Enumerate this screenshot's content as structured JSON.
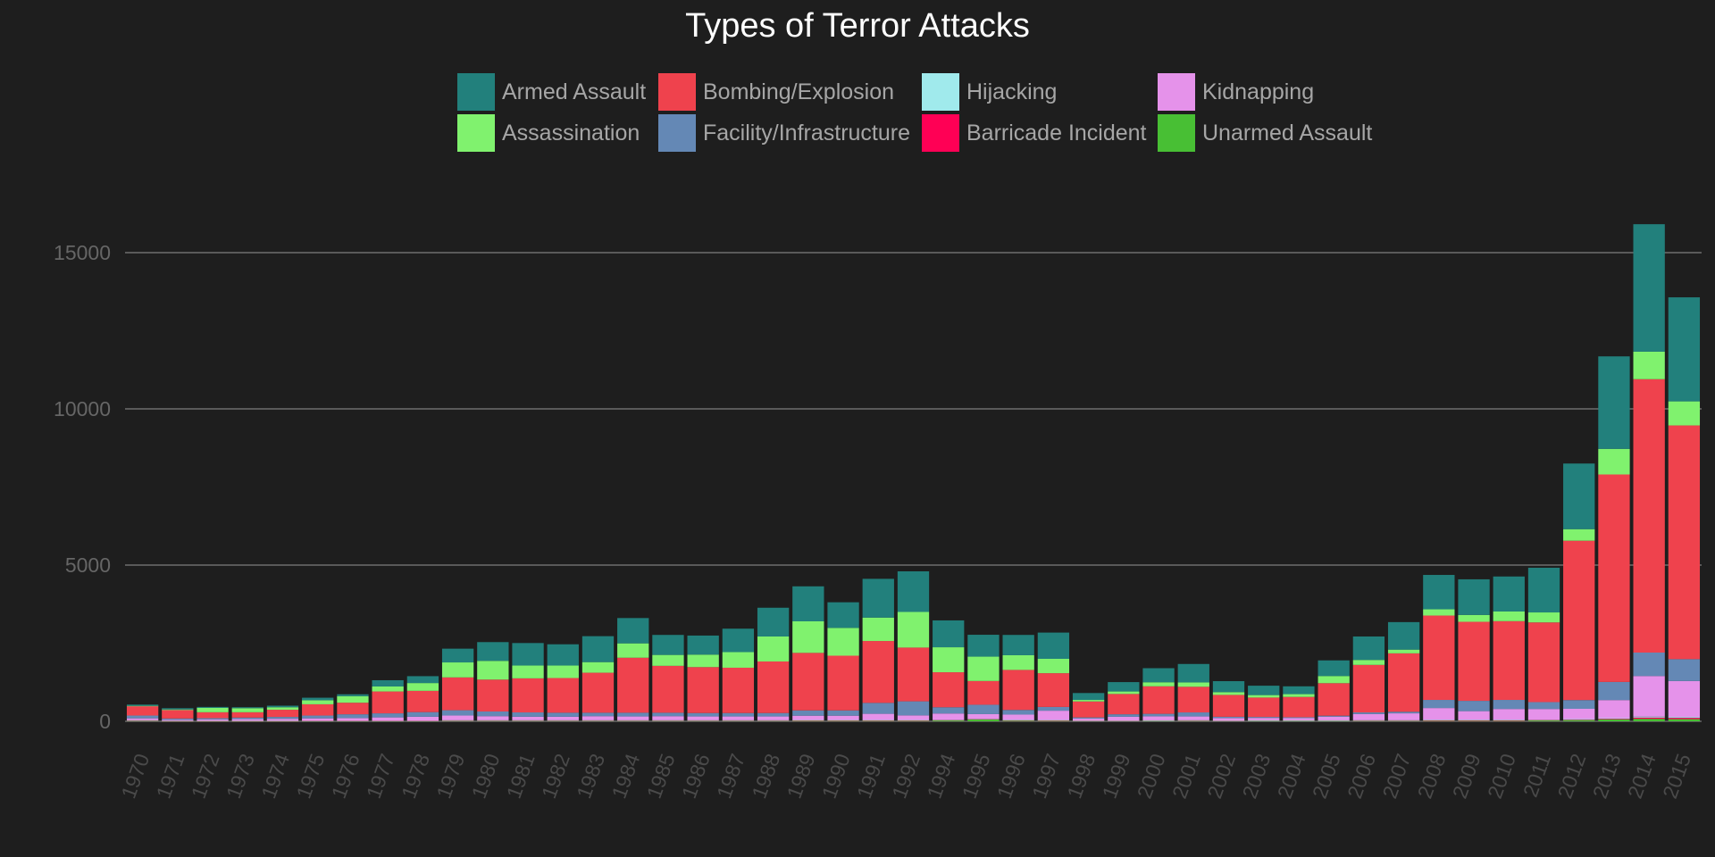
{
  "chart_data": {
    "type": "bar",
    "stacked": true,
    "title": "Types of Terror Attacks",
    "xlabel": "",
    "ylabel": "",
    "ylim": [
      0,
      16000
    ],
    "yticks": [
      0,
      5000,
      10000,
      15000
    ],
    "grid": "horizontal",
    "legend_position": "top-center",
    "categories": [
      "1970",
      "1971",
      "1972",
      "1973",
      "1974",
      "1975",
      "1976",
      "1977",
      "1978",
      "1979",
      "1980",
      "1981",
      "1982",
      "1983",
      "1984",
      "1985",
      "1986",
      "1987",
      "1988",
      "1989",
      "1990",
      "1991",
      "1992",
      "1994",
      "1995",
      "1996",
      "1997",
      "1998",
      "1999",
      "2000",
      "2001",
      "2002",
      "2003",
      "2004",
      "2005",
      "2006",
      "2007",
      "2008",
      "2009",
      "2010",
      "2011",
      "2012",
      "2013",
      "2014",
      "2015"
    ],
    "legend_order": [
      "Armed Assault",
      "Bombing/Explosion",
      "Hijacking",
      "Kidnapping",
      "Assassination",
      "Facility/Infrastructure",
      "Barricade Incident",
      "Unarmed Assault"
    ],
    "series": [
      {
        "name": "Unarmed Assault",
        "color": "#48bf34",
        "values": [
          15,
          5,
          5,
          5,
          5,
          10,
          10,
          10,
          10,
          15,
          15,
          15,
          15,
          15,
          15,
          15,
          15,
          15,
          15,
          20,
          20,
          20,
          20,
          30,
          60,
          25,
          20,
          15,
          15,
          20,
          20,
          15,
          20,
          20,
          20,
          20,
          20,
          20,
          20,
          20,
          30,
          40,
          60,
          80,
          70
        ]
      },
      {
        "name": "Barricade Incident",
        "color": "#ff0055",
        "values": [
          10,
          5,
          5,
          5,
          5,
          5,
          5,
          5,
          5,
          10,
          10,
          10,
          10,
          10,
          10,
          10,
          10,
          10,
          10,
          10,
          10,
          10,
          10,
          10,
          10,
          10,
          10,
          5,
          5,
          5,
          5,
          5,
          5,
          5,
          5,
          5,
          5,
          10,
          10,
          10,
          10,
          10,
          20,
          40,
          40
        ]
      },
      {
        "name": "Hijacking",
        "color": "#a0eaec",
        "values": [
          10,
          10,
          10,
          10,
          10,
          10,
          10,
          10,
          10,
          10,
          10,
          10,
          10,
          10,
          10,
          10,
          10,
          10,
          10,
          10,
          10,
          10,
          10,
          10,
          10,
          10,
          10,
          5,
          5,
          5,
          10,
          5,
          5,
          5,
          5,
          10,
          10,
          15,
          15,
          15,
          15,
          20,
          20,
          30,
          30
        ]
      },
      {
        "name": "Kidnapping",
        "color": "#e592ea",
        "values": [
          60,
          30,
          40,
          50,
          60,
          70,
          80,
          100,
          120,
          150,
          130,
          110,
          110,
          130,
          120,
          130,
          120,
          120,
          120,
          140,
          140,
          200,
          150,
          200,
          150,
          170,
          300,
          60,
          120,
          130,
          120,
          80,
          80,
          70,
          120,
          200,
          220,
          380,
          280,
          350,
          340,
          330,
          580,
          1300,
          1150
        ]
      },
      {
        "name": "Facility/Infrastructure",
        "color": "#6488b5",
        "values": [
          90,
          40,
          40,
          50,
          60,
          90,
          120,
          130,
          150,
          170,
          150,
          140,
          130,
          110,
          120,
          110,
          110,
          110,
          110,
          170,
          170,
          350,
          450,
          200,
          300,
          150,
          120,
          40,
          80,
          80,
          130,
          40,
          30,
          30,
          30,
          50,
          50,
          260,
          330,
          290,
          220,
          280,
          580,
          750,
          700
        ]
      },
      {
        "name": "Bombing/Explosion",
        "color": "#ef424d",
        "values": [
          300,
          270,
          190,
          170,
          230,
          360,
          370,
          700,
          680,
          1050,
          1020,
          1090,
          1110,
          1280,
          1760,
          1500,
          1470,
          1450,
          1650,
          1840,
          1750,
          1980,
          1720,
          1120,
          760,
          1280,
          1080,
          510,
          650,
          880,
          820,
          700,
          620,
          650,
          1040,
          1520,
          1870,
          2700,
          2530,
          2520,
          2550,
          5100,
          6640,
          8750,
          7480
        ]
      },
      {
        "name": "Assassination",
        "color": "#80f26e",
        "values": [
          10,
          20,
          140,
          130,
          80,
          130,
          210,
          160,
          250,
          480,
          600,
          410,
          400,
          340,
          460,
          350,
          400,
          500,
          800,
          1010,
          890,
          750,
          1140,
          800,
          780,
          470,
          460,
          50,
          80,
          130,
          140,
          90,
          80,
          90,
          230,
          160,
          120,
          200,
          220,
          310,
          320,
          370,
          820,
          880,
          770
        ]
      },
      {
        "name": "Armed Assault",
        "color": "#22807c",
        "values": [
          40,
          40,
          30,
          30,
          50,
          80,
          60,
          200,
          220,
          440,
          600,
          720,
          680,
          830,
          810,
          640,
          610,
          750,
          920,
          1120,
          820,
          1240,
          1300,
          860,
          700,
          650,
          840,
          220,
          300,
          450,
          590,
          350,
          300,
          250,
          500,
          750,
          880,
          1100,
          1140,
          1120,
          1430,
          2100,
          2960,
          4080,
          3330
        ]
      }
    ]
  }
}
